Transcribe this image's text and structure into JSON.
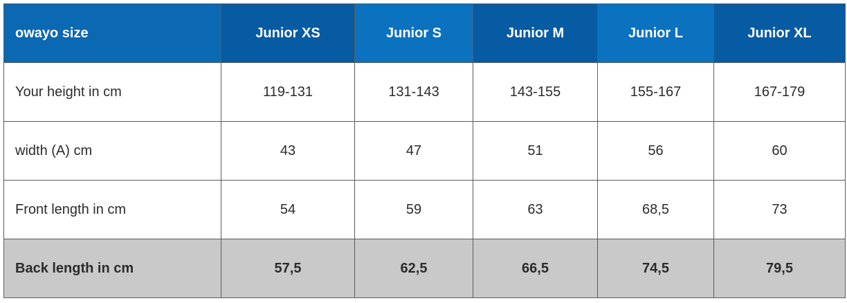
{
  "table": {
    "header": [
      "owayo size",
      "Junior XS",
      "Junior S",
      "Junior M",
      "Junior L",
      "Junior XL"
    ],
    "rows": [
      [
        "Your height in cm",
        "119-131",
        "131-143",
        "143-155",
        "155-167",
        "167-179"
      ],
      [
        "width (A) cm",
        "43",
        "47",
        "51",
        "56",
        "60"
      ],
      [
        "Front length in cm",
        "54",
        "59",
        "63",
        "68,5",
        "73"
      ],
      [
        "Back length in cm",
        "57,5",
        "62,5",
        "66,5",
        "74,5",
        "79,5"
      ]
    ]
  }
}
